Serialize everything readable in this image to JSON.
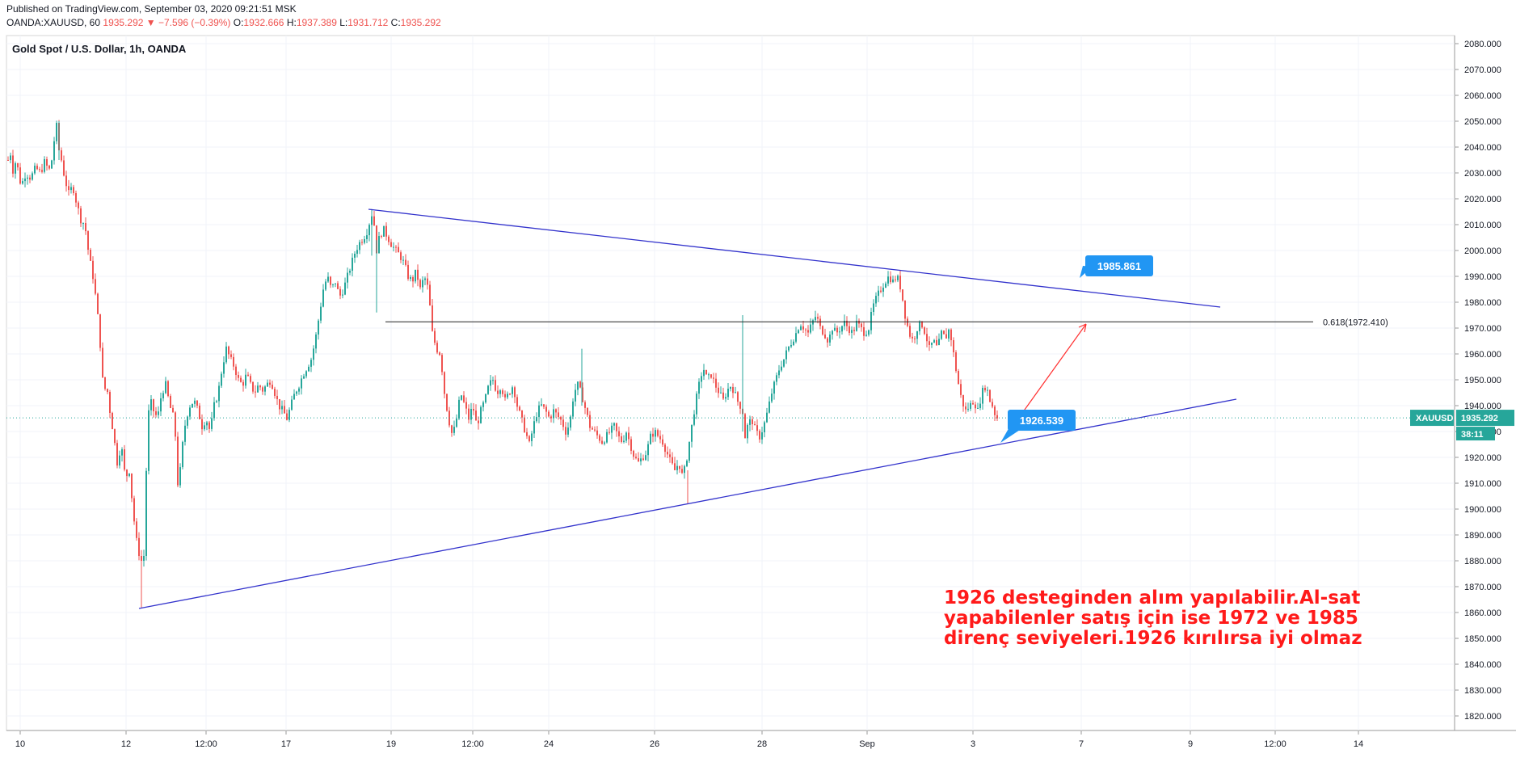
{
  "header": {
    "published": "Published on TradingView.com, September 03, 2020 09:21:51 MSK",
    "symbol": "OANDA:XAUUSD, 60",
    "last": "1935.292",
    "change": "▼ −7.596 (−0.39%)",
    "o_label": "O:",
    "o_value": "1932.666",
    "h_label": "H:",
    "h_value": "1937.389",
    "l_label": "L:",
    "l_value": "1931.712",
    "c_label": "C:",
    "c_value": "1935.292"
  },
  "chart_data": {
    "type": "candlestick",
    "title": "Gold Spot / U.S. Dollar, 1h, OANDA",
    "ylim": [
      1814,
      2084
    ],
    "y_ticks": [
      2080,
      2070,
      2060,
      2050,
      2040,
      2030,
      2020,
      2010,
      2000,
      1990,
      1980,
      1970,
      1960,
      1950,
      1940,
      1930,
      1920,
      1910,
      1900,
      1890,
      1880,
      1870,
      1860,
      1850,
      1840,
      1830,
      1820
    ],
    "x_ticks": [
      "10",
      "12",
      "12:00",
      "17",
      "19",
      "12:00",
      "24",
      "26",
      "28",
      "Sep",
      "3",
      "7",
      "9",
      "12:00",
      "14"
    ],
    "price_series": [
      [
        10,
        2035
      ],
      [
        11,
        2045
      ],
      [
        15,
        2030
      ],
      [
        20,
        2035
      ],
      [
        26,
        2025
      ],
      [
        32,
        2030
      ],
      [
        38,
        2028
      ],
      [
        44,
        2032
      ],
      [
        50,
        2030
      ],
      [
        56,
        2035
      ],
      [
        60,
        2030
      ],
      [
        64,
        2035
      ],
      [
        68,
        2045
      ],
      [
        70,
        2048
      ],
      [
        72,
        2040
      ],
      [
        76,
        2035
      ],
      [
        80,
        2028
      ],
      [
        85,
        2022
      ],
      [
        90,
        2025
      ],
      [
        95,
        2018
      ],
      [
        100,
        2012
      ],
      [
        105,
        2010
      ],
      [
        110,
        1998
      ],
      [
        115,
        1990
      ],
      [
        120,
        1978
      ],
      [
        125,
        1960
      ],
      [
        128,
        1945
      ],
      [
        132,
        1948
      ],
      [
        135,
        1940
      ],
      [
        140,
        1930
      ],
      [
        145,
        1918
      ],
      [
        150,
        1925
      ],
      [
        155,
        1912
      ],
      [
        160,
        1915
      ],
      [
        165,
        1898
      ],
      [
        170,
        1885
      ],
      [
        175,
        1880
      ],
      [
        178,
        1882
      ],
      [
        180,
        1905
      ],
      [
        183,
        1935
      ],
      [
        186,
        1942
      ],
      [
        190,
        1938
      ],
      [
        195,
        1935
      ],
      [
        200,
        1945
      ],
      [
        205,
        1948
      ],
      [
        210,
        1940
      ],
      [
        215,
        1935
      ],
      [
        218,
        1925
      ],
      [
        220,
        1910
      ],
      [
        223,
        1915
      ],
      [
        226,
        1925
      ],
      [
        230,
        1935
      ],
      [
        235,
        1940
      ],
      [
        240,
        1942
      ],
      [
        245,
        1938
      ],
      [
        250,
        1932
      ],
      [
        255,
        1935
      ],
      [
        260,
        1930
      ],
      [
        265,
        1940
      ],
      [
        270,
        1945
      ],
      [
        275,
        1955
      ],
      [
        280,
        1962
      ],
      [
        285,
        1958
      ],
      [
        290,
        1955
      ],
      [
        295,
        1950
      ],
      [
        300,
        1948
      ],
      [
        305,
        1952
      ],
      [
        310,
        1948
      ],
      [
        315,
        1945
      ],
      [
        320,
        1948
      ],
      [
        325,
        1946
      ],
      [
        330,
        1948
      ],
      [
        335,
        1950
      ],
      [
        340,
        1945
      ],
      [
        345,
        1940
      ],
      [
        350,
        1938
      ],
      [
        355,
        1935
      ],
      [
        360,
        1940
      ],
      [
        365,
        1945
      ],
      [
        370,
        1948
      ],
      [
        375,
        1952
      ],
      [
        380,
        1955
      ],
      [
        385,
        1958
      ],
      [
        390,
        1965
      ],
      [
        395,
        1975
      ],
      [
        400,
        1985
      ],
      [
        405,
        1990
      ],
      [
        410,
        1985
      ],
      [
        415,
        1988
      ],
      [
        420,
        1982
      ],
      [
        425,
        1985
      ],
      [
        430,
        1990
      ],
      [
        435,
        1995
      ],
      [
        440,
        2000
      ],
      [
        445,
        2003
      ],
      [
        450,
        2005
      ],
      [
        455,
        2008
      ],
      [
        458,
        2012
      ],
      [
        460,
        2014
      ],
      [
        463,
        2010
      ],
      [
        466,
        2000
      ],
      [
        470,
        2006
      ],
      [
        475,
        2008
      ],
      [
        480,
        2005
      ],
      [
        485,
        2002
      ],
      [
        490,
        2000
      ],
      [
        495,
        1998
      ],
      [
        500,
        1995
      ],
      [
        505,
        1990
      ],
      [
        510,
        1988
      ],
      [
        515,
        1992
      ],
      [
        520,
        1985
      ],
      [
        525,
        1990
      ],
      [
        530,
        1985
      ],
      [
        535,
        1968
      ],
      [
        540,
        1962
      ],
      [
        545,
        1960
      ],
      [
        550,
        1945
      ],
      [
        555,
        1935
      ],
      [
        560,
        1928
      ],
      [
        565,
        1935
      ],
      [
        570,
        1945
      ],
      [
        575,
        1940
      ],
      [
        580,
        1935
      ],
      [
        585,
        1940
      ],
      [
        590,
        1932
      ],
      [
        595,
        1938
      ],
      [
        600,
        1942
      ],
      [
        605,
        1948
      ],
      [
        610,
        1950
      ],
      [
        615,
        1945
      ],
      [
        620,
        1948
      ],
      [
        625,
        1942
      ],
      [
        630,
        1945
      ],
      [
        635,
        1948
      ],
      [
        640,
        1940
      ],
      [
        645,
        1935
      ],
      [
        650,
        1930
      ],
      [
        655,
        1925
      ],
      [
        660,
        1932
      ],
      [
        665,
        1938
      ],
      [
        670,
        1940
      ],
      [
        675,
        1938
      ],
      [
        680,
        1935
      ],
      [
        685,
        1938
      ],
      [
        690,
        1936
      ],
      [
        695,
        1934
      ],
      [
        700,
        1930
      ],
      [
        705,
        1933
      ],
      [
        710,
        1945
      ],
      [
        715,
        1948
      ],
      [
        720,
        1944
      ],
      [
        725,
        1938
      ],
      [
        730,
        1932
      ],
      [
        735,
        1930
      ],
      [
        740,
        1928
      ],
      [
        745,
        1926
      ],
      [
        750,
        1928
      ],
      [
        755,
        1930
      ],
      [
        760,
        1932
      ],
      [
        765,
        1928
      ],
      [
        770,
        1926
      ],
      [
        775,
        1930
      ],
      [
        780,
        1925
      ],
      [
        785,
        1920
      ],
      [
        790,
        1918
      ],
      [
        795,
        1920
      ],
      [
        800,
        1922
      ],
      [
        805,
        1928
      ],
      [
        810,
        1930
      ],
      [
        815,
        1928
      ],
      [
        820,
        1926
      ],
      [
        825,
        1922
      ],
      [
        830,
        1918
      ],
      [
        835,
        1915
      ],
      [
        840,
        1918
      ],
      [
        845,
        1912
      ],
      [
        850,
        1920
      ],
      [
        855,
        1930
      ],
      [
        860,
        1940
      ],
      [
        865,
        1948
      ],
      [
        870,
        1955
      ],
      [
        875,
        1950
      ],
      [
        880,
        1952
      ],
      [
        885,
        1948
      ],
      [
        890,
        1945
      ],
      [
        895,
        1942
      ],
      [
        900,
        1946
      ],
      [
        905,
        1948
      ],
      [
        910,
        1944
      ],
      [
        915,
        1940
      ],
      [
        918,
        1940
      ],
      [
        920,
        1935
      ],
      [
        922,
        1928
      ],
      [
        925,
        1932
      ],
      [
        930,
        1935
      ],
      [
        935,
        1930
      ],
      [
        940,
        1928
      ],
      [
        945,
        1932
      ],
      [
        950,
        1938
      ],
      [
        955,
        1945
      ],
      [
        960,
        1950
      ],
      [
        965,
        1955
      ],
      [
        970,
        1958
      ],
      [
        975,
        1962
      ],
      [
        980,
        1965
      ],
      [
        985,
        1968
      ],
      [
        990,
        1972
      ],
      [
        995,
        1970
      ],
      [
        1000,
        1968
      ],
      [
        1005,
        1972
      ],
      [
        1010,
        1975
      ],
      [
        1015,
        1970
      ],
      [
        1020,
        1968
      ],
      [
        1025,
        1965
      ],
      [
        1030,
        1970
      ],
      [
        1035,
        1968
      ],
      [
        1040,
        1970
      ],
      [
        1045,
        1972
      ],
      [
        1050,
        1970
      ],
      [
        1055,
        1968
      ],
      [
        1060,
        1972
      ],
      [
        1065,
        1970
      ],
      [
        1070,
        1968
      ],
      [
        1075,
        1970
      ],
      [
        1080,
        1978
      ],
      [
        1085,
        1982
      ],
      [
        1090,
        1985
      ],
      [
        1095,
        1988
      ],
      [
        1100,
        1990
      ],
      [
        1105,
        1988
      ],
      [
        1110,
        1990
      ],
      [
        1115,
        1985
      ],
      [
        1120,
        1975
      ],
      [
        1125,
        1968
      ],
      [
        1130,
        1965
      ],
      [
        1135,
        1970
      ],
      [
        1140,
        1972
      ],
      [
        1145,
        1968
      ],
      [
        1150,
        1962
      ],
      [
        1155,
        1965
      ],
      [
        1160,
        1962
      ],
      [
        1165,
        1968
      ],
      [
        1170,
        1966
      ],
      [
        1175,
        1970
      ],
      [
        1180,
        1960
      ],
      [
        1185,
        1950
      ],
      [
        1190,
        1942
      ],
      [
        1195,
        1938
      ],
      [
        1200,
        1940
      ],
      [
        1205,
        1942
      ],
      [
        1210,
        1938
      ],
      [
        1215,
        1945
      ],
      [
        1220,
        1948
      ],
      [
        1225,
        1942
      ],
      [
        1228,
        1940
      ],
      [
        1232,
        1936
      ],
      [
        1235,
        1935
      ]
    ],
    "current_price": 1935.292,
    "current_label": "XAUUSD",
    "countdown": "38:11",
    "fib_label": "0.618(1972.410)",
    "fib_value": 1972.41,
    "callouts": [
      {
        "text": "1985.861",
        "value": 1985.861
      },
      {
        "text": "1926.539",
        "value": 1926.539
      }
    ],
    "trendlines": [
      {
        "name": "resistance",
        "from": [
          2016.2,
          "Aug 18"
        ],
        "to": [
          1979.0,
          "Sep 9"
        ]
      },
      {
        "name": "support",
        "from": [
          1862.0,
          "Aug 12"
        ],
        "to": [
          1943.0,
          "Sep 10"
        ]
      }
    ],
    "colors": {
      "up": "#26a69a",
      "down": "#ef5350",
      "trend": "#3333cc",
      "label_bg": "#2196f3",
      "price_tag": "#26a69a",
      "annotation": "#ff1a1a"
    }
  },
  "annotation": {
    "line1": "1926 desteginden alım yapılabilir.Al-sat",
    "line2": "yapabilenler satış için ise 1972 ve 1985",
    "line3": "direnç seviyeleri.1926 kırılırsa iyi olmaz"
  }
}
